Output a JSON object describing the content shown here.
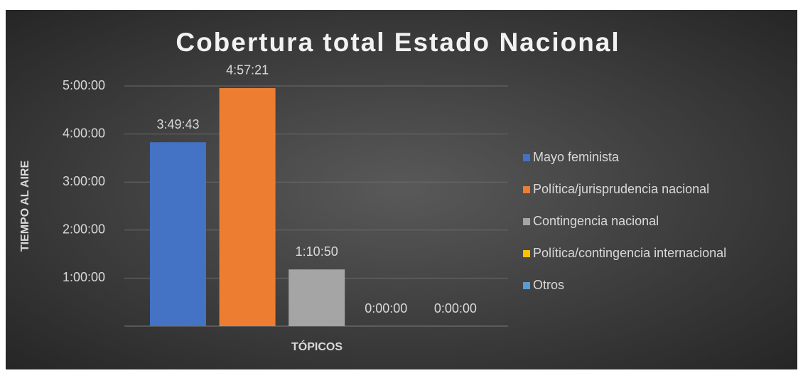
{
  "chart_data": {
    "type": "bar",
    "title": "Cobertura total Estado Nacional",
    "x_label": "TÓPICOS",
    "y_label": "TIEMPO AL AIRE",
    "categories": [
      null
    ],
    "series": [
      {
        "name": "Mayo feminista",
        "color": "#4472c4",
        "values": [
          13783
        ],
        "value_labels": [
          "3:49:43"
        ]
      },
      {
        "name": "Política/jurisprudencia nacional",
        "color": "#ed7d31",
        "values": [
          17841
        ],
        "value_labels": [
          "4:57:21"
        ]
      },
      {
        "name": "Contingencia nacional",
        "color": "#a5a5a5",
        "values": [
          4250
        ],
        "value_labels": [
          "1:10:50"
        ]
      },
      {
        "name": "Política/contingencia internacional",
        "color": "#ffc000",
        "values": [
          0
        ],
        "value_labels": [
          "0:00:00"
        ]
      },
      {
        "name": "Otros",
        "color": "#5b9bd5",
        "values": [
          0
        ],
        "value_labels": [
          "0:00:00"
        ]
      }
    ],
    "ylim": [
      0,
      18000
    ],
    "yticks": [
      {
        "value": 3600,
        "label": "1:00:00"
      },
      {
        "value": 7200,
        "label": "2:00:00"
      },
      {
        "value": 10800,
        "label": "3:00:00"
      },
      {
        "value": 14400,
        "label": "4:00:00"
      },
      {
        "value": 18000,
        "label": "5:00:00"
      }
    ],
    "grid": true,
    "legend": "right"
  }
}
